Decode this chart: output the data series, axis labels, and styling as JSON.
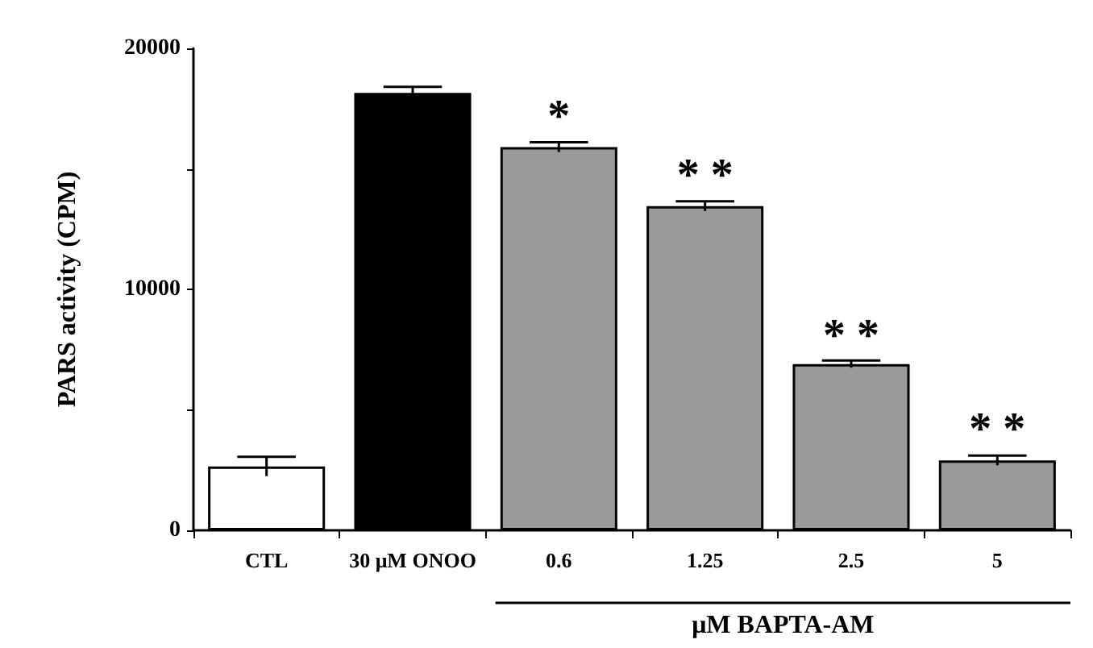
{
  "chart_data": {
    "type": "bar",
    "ylabel": "PARS activity (CPM)",
    "categories": [
      "CTL",
      "30 μM ONOO",
      "0.6",
      "1.25",
      "2.5",
      "5"
    ],
    "values": [
      2650,
      18150,
      15900,
      13450,
      6900,
      2900
    ],
    "errors": [
      400,
      250,
      200,
      200,
      150,
      200
    ],
    "colors": [
      "#ffffff",
      "#000000",
      "#9a9a9a",
      "#9a9a9a",
      "#9a9a9a",
      "#9a9a9a"
    ],
    "ylim": [
      0,
      20000
    ],
    "yticks": [
      0,
      10000,
      20000
    ],
    "grid": false,
    "annotations": [
      {
        "text": "*",
        "x": "0.6",
        "y": 16100
      },
      {
        "text": "* *",
        "x": "1.25",
        "y": 13650
      },
      {
        "text": "* *",
        "x": "2.5",
        "y": 7000
      },
      {
        "text": "* *",
        "x": "5",
        "y": 3100
      },
      "μM BAPTA-AM"
    ]
  }
}
